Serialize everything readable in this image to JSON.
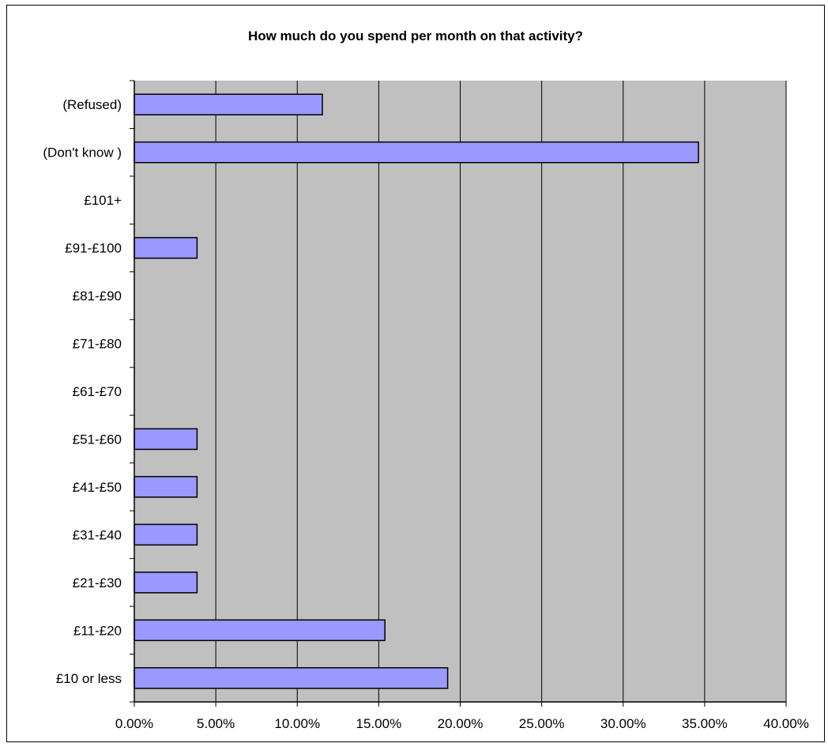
{
  "chart_data": {
    "type": "bar",
    "orientation": "horizontal",
    "title": "How much do you spend per month on that activity?",
    "xlabel": "",
    "ylabel": "",
    "categories": [
      "(Refused)",
      "(Don't know )",
      "£101+",
      "£91-£100",
      "£81-£90",
      "£71-£80",
      "£61-£70",
      "£51-£60",
      "£41-£50",
      "£31-£40",
      "£21-£30",
      "£11-£20",
      "£10 or less"
    ],
    "values": [
      11.54,
      34.62,
      0,
      3.85,
      0,
      0,
      0,
      3.85,
      3.85,
      3.85,
      3.85,
      15.38,
      19.23
    ],
    "xlim": [
      0,
      40
    ],
    "xticks": [
      0,
      5,
      10,
      15,
      20,
      25,
      30,
      35,
      40
    ],
    "xtick_labels": [
      "0.00%",
      "5.00%",
      "10.00%",
      "15.00%",
      "20.00%",
      "25.00%",
      "30.00%",
      "35.00%",
      "40.00%"
    ],
    "grid": "vertical",
    "legend": "none",
    "colors": {
      "bar": "#9999ff",
      "plot_background": "#c0c0c0",
      "grid": "#000000"
    }
  }
}
